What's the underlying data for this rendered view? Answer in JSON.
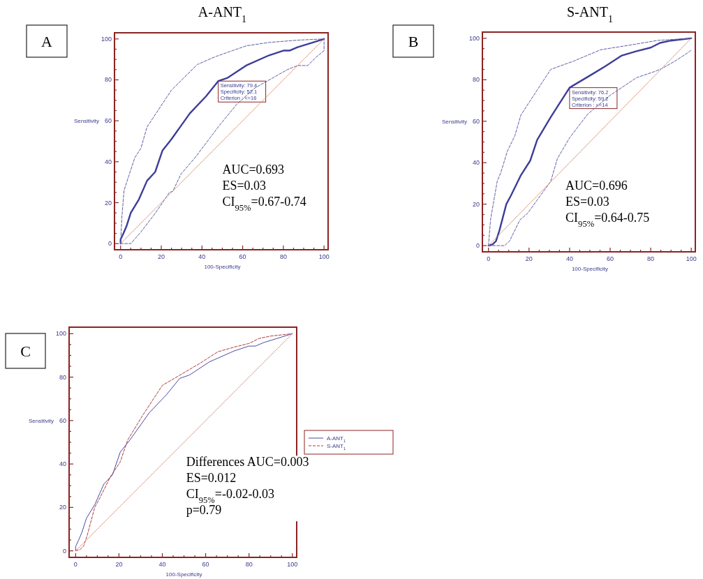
{
  "chart_data": [
    {
      "type": "line",
      "title": "A-ANT$_{1}$",
      "xlabel": "100-Specificity",
      "ylabel": "Sensitivity",
      "xlim": [
        -3,
        102
      ],
      "ylim": [
        -3,
        103
      ],
      "xticks": [
        0,
        {
          "value": 5,
          "label": null
        },
        {
          "value": 10,
          "label": null
        },
        {
          "value": 15,
          "label": null
        },
        20,
        {
          "value": 25,
          "label": null
        },
        {
          "value": 30,
          "label": null
        },
        {
          "value": 35,
          "label": null
        },
        40,
        {
          "value": 45,
          "label": null
        },
        {
          "value": 50,
          "label": null
        },
        {
          "value": 55,
          "label": null
        },
        60,
        {
          "value": 65,
          "label": null
        },
        {
          "value": 70,
          "label": null
        },
        {
          "value": 75,
          "label": null
        },
        80,
        {
          "value": 85,
          "label": null
        },
        {
          "value": 90,
          "label": null
        },
        {
          "value": 95,
          "label": null
        },
        100
      ],
      "yticks": [
        0,
        {
          "value": 5,
          "label": null
        },
        {
          "value": 10,
          "label": null
        },
        {
          "value": 15,
          "label": null
        },
        20,
        {
          "value": 25,
          "label": null
        },
        {
          "value": 30,
          "label": null
        },
        {
          "value": 35,
          "label": null
        },
        40,
        {
          "value": 45,
          "label": null
        },
        {
          "value": 50,
          "label": null
        },
        {
          "value": 55,
          "label": null
        },
        60,
        {
          "value": 65,
          "label": null
        },
        {
          "value": 70,
          "label": null
        },
        {
          "value": 75,
          "label": null
        },
        80,
        {
          "value": 85,
          "label": null
        },
        {
          "value": 90,
          "label": null
        },
        {
          "value": 95,
          "label": null
        },
        100
      ],
      "grid": false,
      "marker": "none",
      "legend": false,
      "series": [
        {
          "color": "#3d3d99",
          "line_style": "solid",
          "x": [
            0,
            0,
            1.4,
            2.9,
            5,
            9,
            13,
            17,
            20.6,
            25,
            34,
            42,
            48,
            52.6,
            61.7,
            73,
            80,
            83,
            87,
            92.6,
            100
          ],
          "values": [
            0,
            2,
            5,
            8.5,
            15,
            21.6,
            30.7,
            35,
            45.5,
            51,
            63.6,
            72,
            79.4,
            81,
            87,
            92,
            94.3,
            94.3,
            96,
            97.7,
            100
          ]
        },
        {
          "color": "#5c5ca8",
          "line_style": "dashed",
          "x": [
            0,
            0.6,
            1.7,
            4,
            7,
            10,
            13,
            25,
            37.7,
            47,
            61.7,
            73,
            87,
            100
          ],
          "values": [
            0,
            12.5,
            26,
            33,
            42,
            46.6,
            57,
            75,
            87.5,
            91.5,
            96.6,
            98.3,
            99.4,
            100
          ]
        },
        {
          "color": "#5c5ca8",
          "line_style": "dashed",
          "x": [
            0,
            5,
            10,
            17,
            24,
            25.7,
            29.7,
            36.6,
            48,
            57,
            66,
            82,
            87,
            92,
            96,
            100,
            100
          ],
          "values": [
            0,
            0,
            5.7,
            14.8,
            25,
            25.6,
            34,
            42,
            57,
            68,
            76,
            85,
            87,
            87,
            91,
            94.3,
            100
          ]
        },
        {
          "color": "#d9825b",
          "line_style": "dotted",
          "x": [
            0,
            100
          ],
          "values": [
            0,
            100
          ]
        }
      ],
      "annotations": [
        "A",
        "AUC=0.693\nES=0.03\nCI$_{95%}$=0.67-0.74",
        {
          "text": "Sensitivity: 79.4\nSpecificity: 52.1\nCriterion : <=16",
          "x": 48,
          "y": 79.4
        }
      ]
    },
    {
      "type": "line",
      "title": "S-ANT$_{1}$",
      "xlabel": "100-Specificity",
      "ylabel": "Sensitivity",
      "xlim": [
        -3,
        102
      ],
      "ylim": [
        -3,
        103
      ],
      "xticks": [
        0,
        {
          "value": 5,
          "label": null
        },
        {
          "value": 10,
          "label": null
        },
        {
          "value": 15,
          "label": null
        },
        20,
        {
          "value": 25,
          "label": null
        },
        {
          "value": 30,
          "label": null
        },
        {
          "value": 35,
          "label": null
        },
        40,
        {
          "value": 45,
          "label": null
        },
        {
          "value": 50,
          "label": null
        },
        {
          "value": 55,
          "label": null
        },
        60,
        {
          "value": 65,
          "label": null
        },
        {
          "value": 70,
          "label": null
        },
        {
          "value": 75,
          "label": null
        },
        80,
        {
          "value": 85,
          "label": null
        },
        {
          "value": 90,
          "label": null
        },
        {
          "value": 95,
          "label": null
        },
        100
      ],
      "yticks": [
        0,
        {
          "value": 5,
          "label": null
        },
        {
          "value": 10,
          "label": null
        },
        {
          "value": 15,
          "label": null
        },
        20,
        {
          "value": 25,
          "label": null
        },
        {
          "value": 30,
          "label": null
        },
        {
          "value": 35,
          "label": null
        },
        40,
        {
          "value": 45,
          "label": null
        },
        {
          "value": 50,
          "label": null
        },
        {
          "value": 55,
          "label": null
        },
        60,
        {
          "value": 65,
          "label": null
        },
        {
          "value": 70,
          "label": null
        },
        {
          "value": 75,
          "label": null
        },
        80,
        {
          "value": 85,
          "label": null
        },
        {
          "value": 90,
          "label": null
        },
        {
          "value": 95,
          "label": null
        },
        100
      ],
      "grid": false,
      "marker": "none",
      "legend": false,
      "series": [
        {
          "color": "#3d3d99",
          "line_style": "solid",
          "x": [
            0,
            2,
            3.7,
            5.4,
            8.8,
            11,
            16,
            20.6,
            24,
            30.7,
            40,
            51,
            57.6,
            65.5,
            73,
            80,
            84.6,
            90,
            100
          ],
          "values": [
            0,
            0.6,
            2.2,
            7.3,
            20,
            24,
            34,
            41,
            51,
            62,
            76.2,
            82.6,
            86.5,
            91.6,
            93.8,
            95.5,
            97.8,
            98.9,
            100
          ]
        },
        {
          "color": "#5c5ca8",
          "line_style": "dashed",
          "x": [
            0,
            1,
            4.3,
            6,
            9.3,
            13,
            16,
            24,
            30.7,
            42,
            55.4,
            69,
            83.5,
            100
          ],
          "values": [
            0,
            12.4,
            31,
            35,
            45.5,
            53,
            63,
            75,
            85,
            89,
            94.5,
            96.6,
            99,
            100
          ]
        },
        {
          "color": "#5c5ca8",
          "line_style": "dashed",
          "x": [
            0,
            8,
            10.4,
            15.5,
            19.4,
            24,
            30.7,
            34,
            40,
            49,
            60,
            73,
            82,
            85.5,
            92.5,
            99,
            100
          ],
          "values": [
            0,
            0,
            2.2,
            12.4,
            15.7,
            22,
            31,
            42,
            52,
            63.5,
            72.5,
            81,
            84,
            85.4,
            89.3,
            93.5,
            94.4
          ]
        },
        {
          "color": "#d9825b",
          "line_style": "dotted",
          "x": [
            0,
            100
          ],
          "values": [
            0,
            100
          ]
        }
      ],
      "annotations": [
        "B",
        "AUC=0.696\nES=0.03\nCI$_{95%}$=0.64-0.75",
        {
          "text": "Sensitivity: 76.2\nSpecificity: 59.2\nCriterion : <=14",
          "x": 40,
          "y": 76.2
        }
      ]
    },
    {
      "type": "line",
      "xlabel": "100-Specificity",
      "ylabel": "Sensitivity",
      "xlim": [
        -3,
        102
      ],
      "ylim": [
        -3,
        103
      ],
      "xticks": [
        0,
        {
          "value": 5,
          "label": null
        },
        {
          "value": 10,
          "label": null
        },
        {
          "value": 15,
          "label": null
        },
        20,
        {
          "value": 25,
          "label": null
        },
        {
          "value": 30,
          "label": null
        },
        {
          "value": 35,
          "label": null
        },
        40,
        {
          "value": 45,
          "label": null
        },
        {
          "value": 50,
          "label": null
        },
        {
          "value": 55,
          "label": null
        },
        60,
        {
          "value": 65,
          "label": null
        },
        {
          "value": 70,
          "label": null
        },
        {
          "value": 75,
          "label": null
        },
        80,
        {
          "value": 85,
          "label": null
        },
        {
          "value": 90,
          "label": null
        },
        {
          "value": 95,
          "label": null
        },
        100
      ],
      "yticks": [
        0,
        {
          "value": 5,
          "label": null
        },
        {
          "value": 10,
          "label": null
        },
        {
          "value": 15,
          "label": null
        },
        20,
        {
          "value": 25,
          "label": null
        },
        {
          "value": 30,
          "label": null
        },
        {
          "value": 35,
          "label": null
        },
        40,
        {
          "value": 45,
          "label": null
        },
        {
          "value": 50,
          "label": null
        },
        {
          "value": 55,
          "label": null
        },
        60,
        {
          "value": 65,
          "label": null
        },
        {
          "value": 70,
          "label": null
        },
        {
          "value": 75,
          "label": null
        },
        80,
        {
          "value": 85,
          "label": null
        },
        {
          "value": 90,
          "label": null
        },
        {
          "value": 95,
          "label": null
        },
        100
      ],
      "grid": false,
      "marker": "none",
      "legend": "right",
      "series": [
        {
          "name": "A-ANT$_{1}$",
          "color": "#4a4aa8",
          "line_style": "solid",
          "x": [
            0,
            0,
            1.4,
            2.9,
            5,
            9,
            13,
            17,
            20.6,
            25,
            34,
            42,
            48,
            52.6,
            61.7,
            73,
            80,
            83,
            87,
            92.6,
            100
          ],
          "values": [
            0,
            2,
            5,
            8.5,
            15,
            21.6,
            30.7,
            35,
            45.5,
            51,
            63.6,
            72,
            79.4,
            81,
            87,
            92,
            94.3,
            94.3,
            96,
            97.7,
            100
          ]
        },
        {
          "name": "S-ANT$_{1}$",
          "color": "#b03a3a",
          "line_style": "dashed",
          "x": [
            0,
            2,
            3.7,
            5.4,
            8.8,
            11,
            16,
            20.6,
            24,
            30.7,
            40,
            51,
            57.6,
            65.5,
            73,
            80,
            84.6,
            90,
            100
          ],
          "values": [
            0,
            0.6,
            2.2,
            7.3,
            20,
            24,
            34,
            41,
            51,
            62,
            76.2,
            82.6,
            86.5,
            91.6,
            93.8,
            95.5,
            97.8,
            98.9,
            100
          ]
        },
        {
          "color": "#d9825b",
          "line_style": "dotted",
          "x": [
            0,
            100
          ],
          "values": [
            0,
            100
          ]
        }
      ],
      "annotations": [
        "C",
        "Differences AUC=0.003\nES=0.012\nCI$_{95%}$=-0.02-0.03\np=0.79"
      ]
    }
  ]
}
